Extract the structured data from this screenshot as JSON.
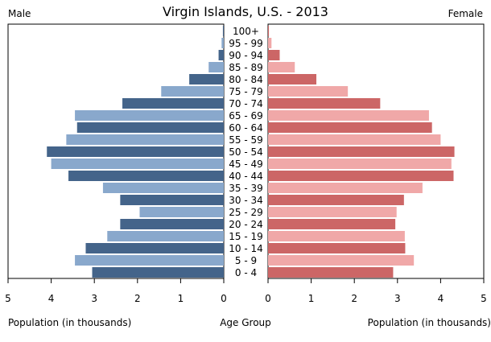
{
  "chart_data": {
    "type": "bar",
    "title": "Virgin Islands, U.S. - 2013",
    "left_label": "Male",
    "right_label": "Female",
    "xlabel_left": "Population (in thousands)",
    "xlabel_center": "Age Group",
    "xlabel_right": "Population (in thousands)",
    "xlim": [
      0,
      5
    ],
    "x_ticks": [
      "0",
      "1",
      "2",
      "3",
      "4",
      "5"
    ],
    "categories": [
      "0 - 4",
      "5 - 9",
      "10 - 14",
      "15 - 19",
      "20 - 24",
      "25 - 29",
      "30 - 34",
      "35 - 39",
      "40 - 44",
      "45 - 49",
      "50 - 54",
      "55 - 59",
      "60 - 64",
      "65 - 69",
      "70 - 74",
      "75 - 79",
      "80 - 84",
      "85 - 89",
      "90 - 94",
      "95 - 99",
      "100+"
    ],
    "series": [
      {
        "name": "Male",
        "values": [
          3.05,
          3.45,
          3.2,
          2.7,
          2.4,
          1.95,
          2.4,
          2.8,
          3.6,
          4.0,
          4.1,
          3.65,
          3.4,
          3.45,
          2.35,
          1.45,
          0.8,
          0.35,
          0.12,
          0.05,
          0.02
        ]
      },
      {
        "name": "Female",
        "values": [
          2.9,
          3.38,
          3.18,
          3.17,
          2.95,
          2.98,
          3.15,
          3.58,
          4.3,
          4.25,
          4.32,
          4.0,
          3.8,
          3.73,
          2.6,
          1.85,
          1.12,
          0.62,
          0.27,
          0.08,
          0.02
        ]
      }
    ],
    "colors": {
      "male_dark": "#44648a",
      "male_light": "#89a8cc",
      "female_dark": "#cc6666",
      "female_light": "#f0a8a8"
    },
    "grid": false,
    "legend": "none"
  }
}
